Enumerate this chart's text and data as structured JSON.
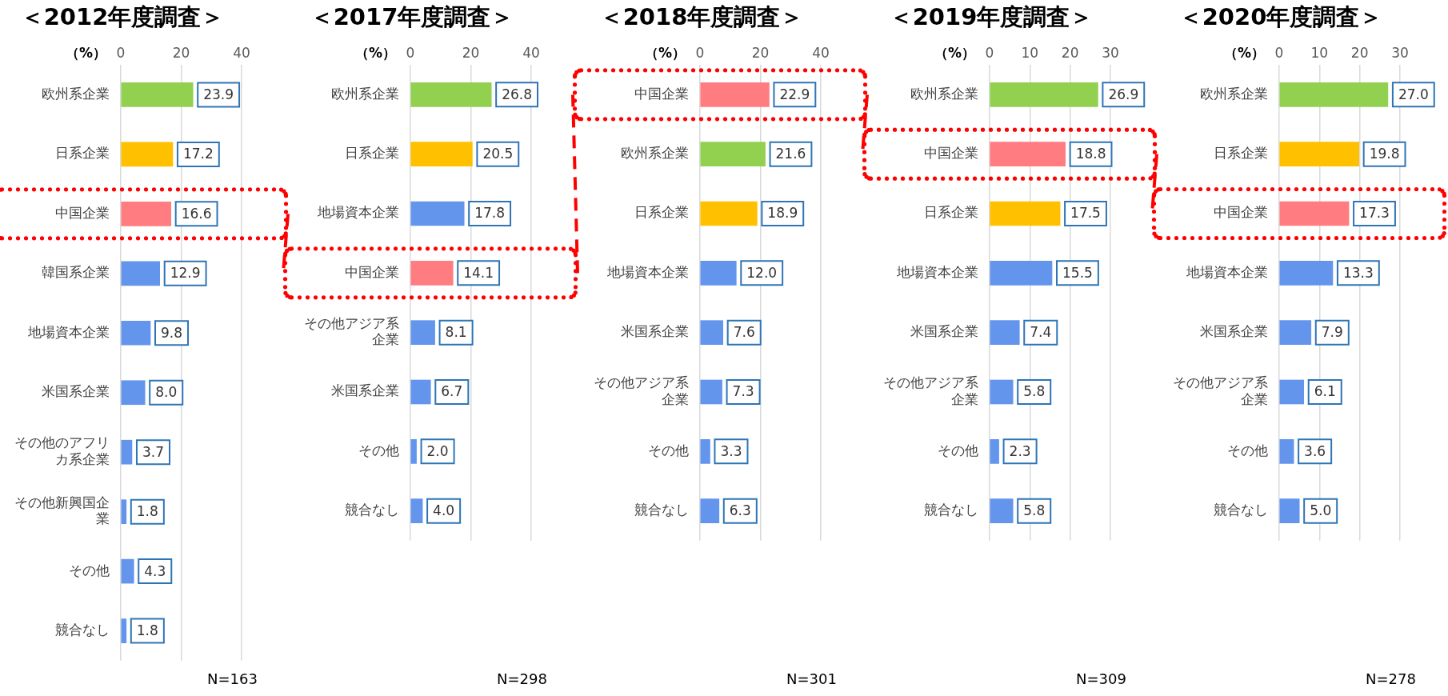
{
  "chart_data": [
    {
      "type": "bar",
      "orientation": "horizontal",
      "title": "＜2012年度調査＞",
      "xlabel": "（%）",
      "categories": [
        "欧州系企業",
        "日系企業",
        "中国企業",
        "韓国系企業",
        "地場資本企業",
        "米国系企業",
        "その他のアフリカ系企業",
        "その他新興国企業",
        "その他",
        "競合なし"
      ],
      "values": [
        23.9,
        17.2,
        16.6,
        12.9,
        9.8,
        8.0,
        3.7,
        1.8,
        4.3,
        1.8
      ],
      "value_labels": [
        "23.9",
        "17.2",
        "16.6",
        "12.9",
        "9.8",
        "8.0",
        "3.7",
        "1.8",
        "4.3",
        "1.8"
      ],
      "colors": [
        "#92d050",
        "#ffc000",
        "#ff7c80",
        "#6495ed",
        "#6495ed",
        "#6495ed",
        "#6495ed",
        "#6495ed",
        "#6495ed",
        "#6495ed"
      ],
      "xlim": [
        0,
        40
      ],
      "xticks": [
        0,
        20,
        40
      ],
      "grid": "x",
      "annotations": [
        "N=163"
      ]
    },
    {
      "type": "bar",
      "orientation": "horizontal",
      "title": "＜2017年度調査＞",
      "xlabel": "（%）",
      "categories": [
        "欧州系企業",
        "日系企業",
        "地場資本企業",
        "中国企業",
        "その他アジア系企業",
        "米国系企業",
        "その他",
        "競合なし"
      ],
      "values": [
        26.8,
        20.5,
        17.8,
        14.1,
        8.1,
        6.7,
        2.0,
        4.0
      ],
      "value_labels": [
        "26.8",
        "20.5",
        "17.8",
        "14.1",
        "8.1",
        "6.7",
        "2.0",
        "4.0"
      ],
      "colors": [
        "#92d050",
        "#ffc000",
        "#6495ed",
        "#ff7c80",
        "#6495ed",
        "#6495ed",
        "#6495ed",
        "#6495ed"
      ],
      "xlim": [
        0,
        40
      ],
      "xticks": [
        0,
        20,
        40
      ],
      "grid": "x",
      "annotations": [
        "N=298"
      ]
    },
    {
      "type": "bar",
      "orientation": "horizontal",
      "title": "＜2018年度調査＞",
      "xlabel": "（%）",
      "categories": [
        "中国企業",
        "欧州系企業",
        "日系企業",
        "地場資本企業",
        "米国系企業",
        "その他アジア系企業",
        "その他",
        "競合なし"
      ],
      "values": [
        22.9,
        21.6,
        18.9,
        12.0,
        7.6,
        7.3,
        3.3,
        6.3
      ],
      "value_labels": [
        "22.9",
        "21.6",
        "18.9",
        "12.0",
        "7.6",
        "7.3",
        "3.3",
        "6.3"
      ],
      "colors": [
        "#ff7c80",
        "#92d050",
        "#ffc000",
        "#6495ed",
        "#6495ed",
        "#6495ed",
        "#6495ed",
        "#6495ed"
      ],
      "xlim": [
        0,
        40
      ],
      "xticks": [
        0,
        20,
        40
      ],
      "grid": "x",
      "annotations": [
        "N=301"
      ]
    },
    {
      "type": "bar",
      "orientation": "horizontal",
      "title": "＜2019年度調査＞",
      "xlabel": "（%）",
      "categories": [
        "欧州系企業",
        "中国企業",
        "日系企業",
        "地場資本企業",
        "米国系企業",
        "その他アジア系企業",
        "その他",
        "競合なし"
      ],
      "values": [
        26.9,
        18.8,
        17.5,
        15.5,
        7.4,
        5.8,
        2.3,
        5.8
      ],
      "value_labels": [
        "26.9",
        "18.8",
        "17.5",
        "15.5",
        "7.4",
        "5.8",
        "2.3",
        "5.8"
      ],
      "colors": [
        "#92d050",
        "#ff7c80",
        "#ffc000",
        "#6495ed",
        "#6495ed",
        "#6495ed",
        "#6495ed",
        "#6495ed"
      ],
      "xlim": [
        0,
        30
      ],
      "xticks": [
        0,
        10,
        20,
        30
      ],
      "grid": "x",
      "annotations": [
        "N=309"
      ]
    },
    {
      "type": "bar",
      "orientation": "horizontal",
      "title": "＜2020年度調査＞",
      "xlabel": "（%）",
      "categories": [
        "欧州系企業",
        "日系企業",
        "中国企業",
        "地場資本企業",
        "米国系企業",
        "その他アジア系企業",
        "その他",
        "競合なし"
      ],
      "values": [
        27.0,
        19.8,
        17.3,
        13.3,
        7.9,
        6.1,
        3.6,
        5.0
      ],
      "value_labels": [
        "27.0",
        "19.8",
        "17.3",
        "13.3",
        "7.9",
        "6.1",
        "3.6",
        "5.0"
      ],
      "colors": [
        "#92d050",
        "#ffc000",
        "#ff7c80",
        "#6495ed",
        "#6495ed",
        "#6495ed",
        "#6495ed",
        "#6495ed"
      ],
      "xlim": [
        0,
        30
      ],
      "xticks": [
        0,
        10,
        20,
        30
      ],
      "grid": "x",
      "annotations": [
        "N=278"
      ]
    }
  ]
}
